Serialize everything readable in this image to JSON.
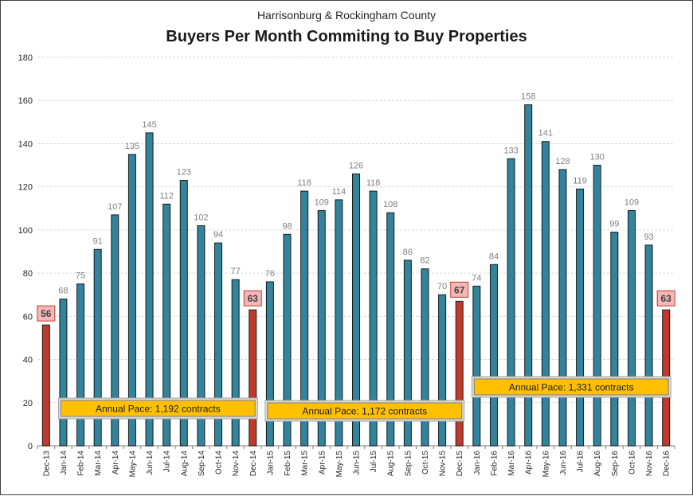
{
  "chart_data": {
    "type": "bar",
    "subtitle": "Harrisonburg & Rockingham County",
    "title": "Buyers Per Month Commiting to Buy Properties",
    "categories": [
      "Dec-13",
      "Jan-14",
      "Feb-14",
      "Mar-14",
      "Apr-14",
      "May-14",
      "Jun-14",
      "Jul-14",
      "Aug-14",
      "Sep-14",
      "Oct-14",
      "Nov-14",
      "Dec-14",
      "Jan-15",
      "Feb-15",
      "Mar-15",
      "Apr-15",
      "May-15",
      "Jun-15",
      "Jul-15",
      "Aug-15",
      "Sep-15",
      "Oct-15",
      "Nov-15",
      "Dec-15",
      "Jan-16",
      "Feb-16",
      "Mar-16",
      "Apr-16",
      "May-16",
      "Jun-16",
      "Jul-16",
      "Aug-16",
      "Sep-16",
      "Oct-16",
      "Nov-16",
      "Dec-16"
    ],
    "values": [
      56,
      68,
      75,
      91,
      107,
      135,
      145,
      112,
      123,
      102,
      94,
      77,
      63,
      76,
      98,
      118,
      109,
      114,
      126,
      118,
      108,
      86,
      82,
      70,
      67,
      74,
      84,
      133,
      158,
      141,
      128,
      119,
      130,
      99,
      109,
      93,
      63
    ],
    "highlighted": [
      "Dec-13",
      "Dec-14",
      "Dec-15",
      "Dec-16"
    ],
    "ylim": [
      0,
      180
    ],
    "yticks": [
      0,
      20,
      40,
      60,
      80,
      100,
      120,
      140,
      160,
      180
    ],
    "grid": true,
    "colors": {
      "bar": "#31849B",
      "highlight": "#C0392B",
      "bar_edge": "#1a1a1a",
      "highlight_label_bg": "#F4B7B7",
      "highlight_label_border": "#C0392B",
      "pace_fill": "#FFC000"
    },
    "annotations": [
      {
        "text": "Annual Pace: 1,192 contracts",
        "from": "Jan-14",
        "to": "Dec-14"
      },
      {
        "text": "Annual Pace: 1,172 contracts",
        "from": "Jan-15",
        "to": "Dec-15"
      },
      {
        "text": "Annual Pace: 1,331 contracts",
        "from": "Jan-16",
        "to": "Dec-16"
      }
    ]
  }
}
